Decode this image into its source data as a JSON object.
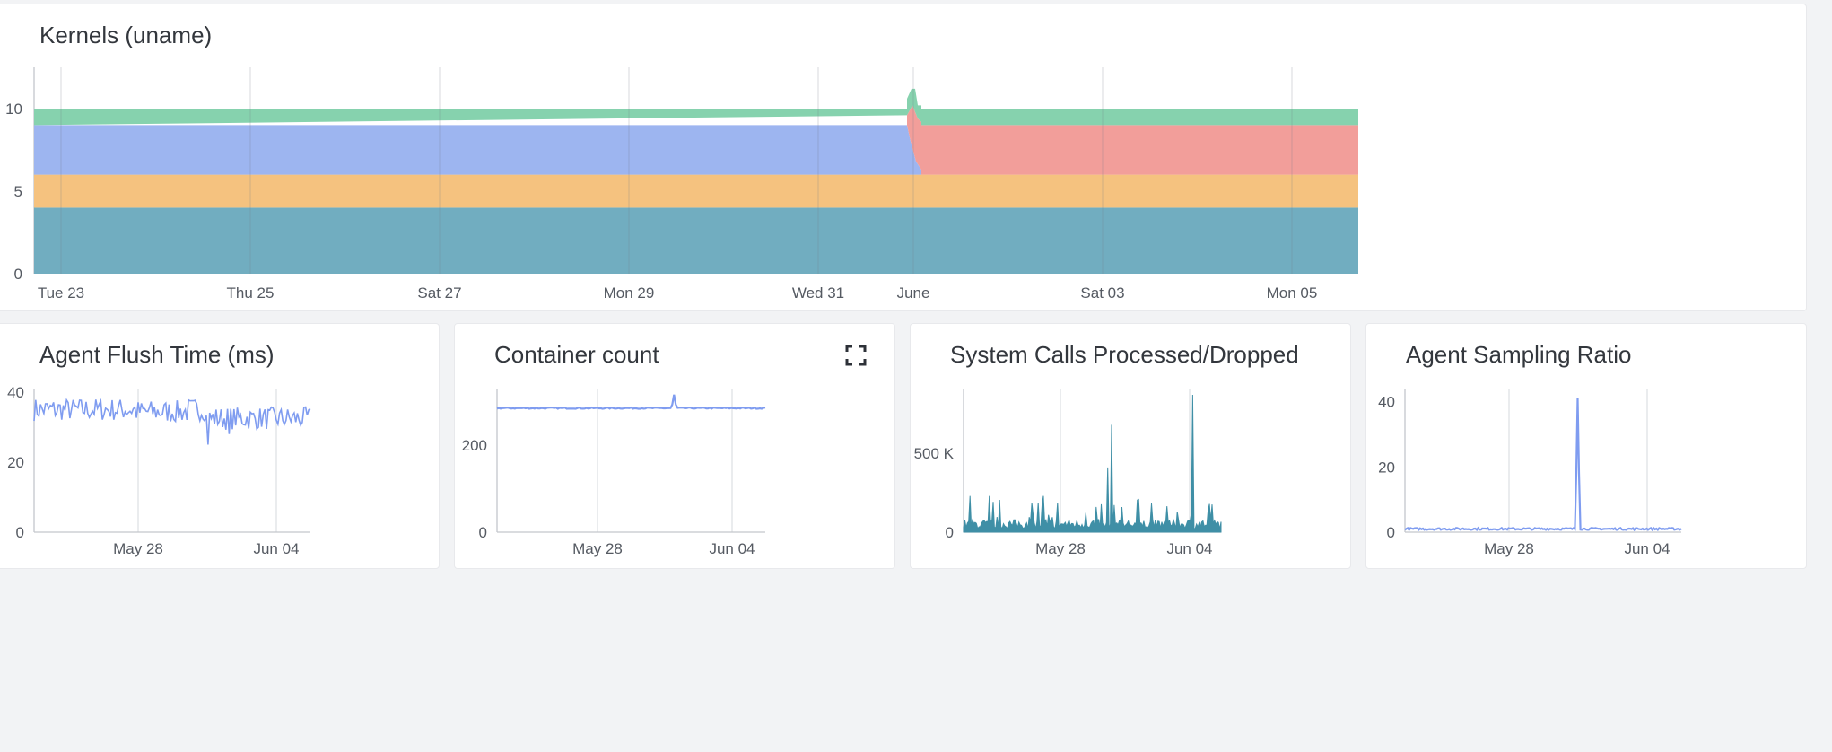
{
  "panels": {
    "kernels": {
      "title": "Kernels (uname)"
    },
    "flush": {
      "title": "Agent Flush Time (ms)"
    },
    "container": {
      "title": "Container count",
      "expand_icon": "expand-icon"
    },
    "syscalls": {
      "title": "System Calls Processed/Dropped"
    },
    "sampling": {
      "title": "Agent Sampling Ratio"
    }
  },
  "colors": {
    "teal": "#71adc0",
    "orange": "#f5c27f",
    "blue": "#9db5f0",
    "red": "#f29e9a",
    "green": "#86d2ae",
    "line_blue": "#7f9cf0",
    "line_teal": "#3f8fa6"
  },
  "chart_data": [
    {
      "type": "area",
      "panel": "kernels",
      "stacked": true,
      "x_ticks": [
        "Tue 23",
        "Thu 25",
        "Sat 27",
        "Mon 29",
        "Wed 31",
        "June",
        "Sat 03",
        "Mon 05"
      ],
      "y_ticks": [
        "0",
        "5",
        "10"
      ],
      "ylim": [
        0,
        12.5
      ],
      "grid": true,
      "series": [
        {
          "color": "teal",
          "value": 4
        },
        {
          "color": "orange",
          "value": 2
        },
        {
          "color": "blue",
          "value_before": 3,
          "value_after": 0
        },
        {
          "color": "red",
          "value_before": 0,
          "value_after": 3
        },
        {
          "color": "green",
          "value": 1,
          "spike_value": 2.2
        }
      ]
    },
    {
      "type": "line",
      "panel": "flush",
      "x_ticks": [
        "May 28",
        "Jun 04"
      ],
      "y_ticks": [
        "0",
        "20",
        "40"
      ],
      "ylim": [
        0,
        41
      ],
      "baseline": 35,
      "dip": 28,
      "grid": true
    },
    {
      "type": "line",
      "panel": "container",
      "x_ticks": [
        "May 28",
        "Jun 04"
      ],
      "y_ticks": [
        "0",
        "200"
      ],
      "ylim": [
        0,
        330
      ],
      "baseline": 285,
      "spike": 316,
      "grid": true
    },
    {
      "type": "area",
      "panel": "syscalls",
      "x_ticks": [
        "May 28",
        "Jun 04"
      ],
      "y_ticks": [
        "0",
        "500 K"
      ],
      "ylim": [
        0,
        910000
      ],
      "peaks": [
        680000,
        870000,
        410000
      ],
      "grid": true
    },
    {
      "type": "line",
      "panel": "sampling",
      "x_ticks": [
        "May 28",
        "Jun 04"
      ],
      "y_ticks": [
        "0",
        "20",
        "40"
      ],
      "ylim": [
        0,
        44
      ],
      "baseline": 1,
      "spike": 41,
      "grid": true
    }
  ]
}
